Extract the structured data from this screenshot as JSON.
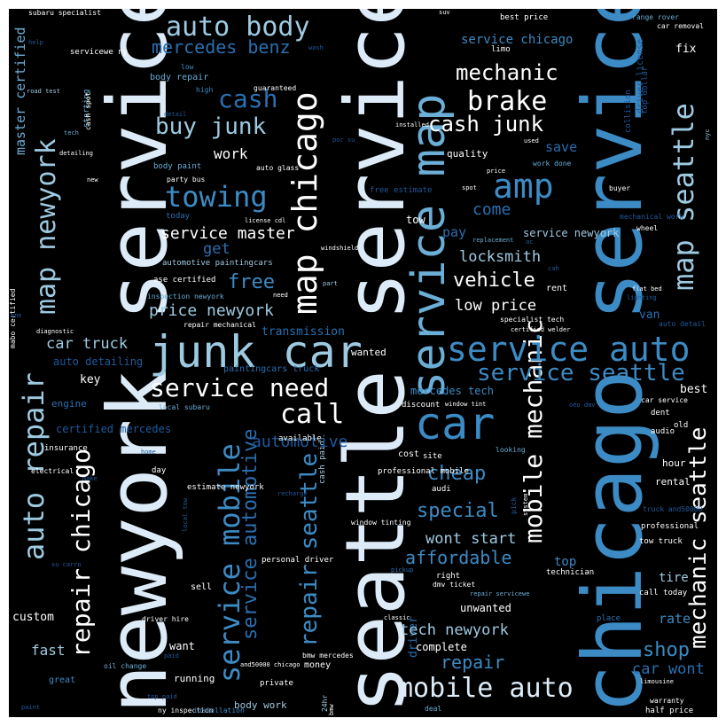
{
  "palette": {
    "background": "#000000",
    "white": "#ffffff",
    "pale": "#dcebf7",
    "light": "#9ecae1",
    "mid": "#6baed6",
    "blue": "#3c8bc4",
    "dark": "#2a6fb0",
    "navy": "#1f5a9e"
  },
  "words": [
    {
      "text": "newyork service"
    },
    {
      "text": "seattle service"
    },
    {
      "text": "chicago service"
    },
    {
      "text": "service map"
    },
    {
      "text": "junk car"
    },
    {
      "text": "map chicago"
    },
    {
      "text": "car"
    },
    {
      "text": "service auto"
    },
    {
      "text": "amp"
    },
    {
      "text": "map seattle"
    },
    {
      "text": "mobile auto"
    },
    {
      "text": "auto body"
    },
    {
      "text": "towing"
    },
    {
      "text": "brake"
    },
    {
      "text": "service need"
    },
    {
      "text": "auto repair"
    },
    {
      "text": "map newyork"
    },
    {
      "text": "service mobile"
    },
    {
      "text": "repair chicago"
    },
    {
      "text": "service seattle"
    },
    {
      "text": "mobile mechanic"
    },
    {
      "text": "cash junk"
    },
    {
      "text": "buy junk"
    },
    {
      "text": "cash"
    },
    {
      "text": "mechanic"
    },
    {
      "text": "call"
    },
    {
      "text": "repair seattle"
    },
    {
      "text": "mercedes benz"
    },
    {
      "text": "service master"
    },
    {
      "text": "vehicle"
    },
    {
      "text": "mechanic seattle"
    },
    {
      "text": "automotive"
    },
    {
      "text": "service automotive"
    },
    {
      "text": "price newyork"
    },
    {
      "text": "free"
    },
    {
      "text": "cheap"
    },
    {
      "text": "special"
    },
    {
      "text": "affordable"
    },
    {
      "text": "shop"
    },
    {
      "text": "repair"
    },
    {
      "text": "tech newyork"
    },
    {
      "text": "wont start"
    },
    {
      "text": "car truck"
    },
    {
      "text": "locksmith"
    },
    {
      "text": "low price"
    },
    {
      "text": "car wont"
    },
    {
      "text": "come"
    },
    {
      "text": "work"
    },
    {
      "text": "get"
    },
    {
      "text": "save"
    },
    {
      "text": "fast"
    },
    {
      "text": "pay"
    },
    {
      "text": "service chicago"
    },
    {
      "text": "master certified"
    },
    {
      "text": "certified mercedes"
    },
    {
      "text": "auto detailing"
    },
    {
      "text": "transmission"
    },
    {
      "text": "service newyork"
    },
    {
      "text": "mercedes tech"
    },
    {
      "text": "tire"
    },
    {
      "text": "top"
    },
    {
      "text": "rate"
    },
    {
      "text": "van"
    },
    {
      "text": "key"
    },
    {
      "text": "best"
    },
    {
      "text": "custom"
    },
    {
      "text": "engine"
    },
    {
      "text": "want"
    },
    {
      "text": "unwanted"
    },
    {
      "text": "complete"
    },
    {
      "text": "quality"
    },
    {
      "text": "tow"
    },
    {
      "text": "fix"
    },
    {
      "text": "wanted"
    },
    {
      "text": "hour"
    },
    {
      "text": "sell"
    },
    {
      "text": "rental"
    },
    {
      "text": "body repair"
    },
    {
      "text": "body work"
    },
    {
      "text": "running"
    },
    {
      "text": "money"
    },
    {
      "text": "insurance"
    },
    {
      "text": "great"
    },
    {
      "text": "driver"
    },
    {
      "text": "automotive paintingcars"
    },
    {
      "text": "paintingcars truck"
    },
    {
      "text": "subaru specialist"
    },
    {
      "text": "limo"
    },
    {
      "text": "best price"
    },
    {
      "text": "range rover"
    },
    {
      "text": "car removal"
    },
    {
      "text": "top dollar"
    },
    {
      "text": "driver license"
    },
    {
      "text": "body paint"
    },
    {
      "text": "party bus"
    },
    {
      "text": "auto glass"
    },
    {
      "text": "work done"
    },
    {
      "text": "collision"
    },
    {
      "text": "buyer"
    },
    {
      "text": "mechanical work"
    },
    {
      "text": "wheel"
    },
    {
      "text": "today"
    },
    {
      "text": "license cdl"
    },
    {
      "text": "windshield"
    },
    {
      "text": "replacement"
    },
    {
      "text": "ase certified"
    },
    {
      "text": "inspection newyork"
    },
    {
      "text": "repair mechanical"
    },
    {
      "text": "rent"
    },
    {
      "text": "flat bed"
    },
    {
      "text": "lighting"
    },
    {
      "text": "specialist tech"
    },
    {
      "text": "certified welder"
    },
    {
      "text": "auto detail"
    },
    {
      "text": "mabo certified"
    },
    {
      "text": "diagnostic"
    },
    {
      "text": "one"
    },
    {
      "text": "local subaru"
    },
    {
      "text": "discount"
    },
    {
      "text": "window tint"
    },
    {
      "text": "car service"
    },
    {
      "text": "dent"
    },
    {
      "text": "old"
    },
    {
      "text": "audio"
    },
    {
      "text": "available"
    },
    {
      "text": "cash paid"
    },
    {
      "text": "site"
    },
    {
      "text": "cost"
    },
    {
      "text": "looking"
    },
    {
      "text": "system"
    },
    {
      "text": "electrical"
    },
    {
      "text": "day"
    },
    {
      "text": "professional mobile"
    },
    {
      "text": "audi"
    },
    {
      "text": "estimate newyork"
    },
    {
      "text": "window tinting"
    },
    {
      "text": "professional"
    },
    {
      "text": "tow truck"
    },
    {
      "text": "truck and50000"
    },
    {
      "text": "personal driver"
    },
    {
      "text": "right"
    },
    {
      "text": "technician"
    },
    {
      "text": "call today"
    },
    {
      "text": "repair servicewe"
    },
    {
      "text": "driver hire"
    },
    {
      "text": "place"
    },
    {
      "text": "classic"
    },
    {
      "text": "bmw mercedes"
    },
    {
      "text": "oil change"
    },
    {
      "text": "and50000 chicago"
    },
    {
      "text": "private"
    },
    {
      "text": "24hr"
    },
    {
      "text": "limousine"
    },
    {
      "text": "warranty"
    },
    {
      "text": "half price"
    },
    {
      "text": "ny inspection"
    },
    {
      "text": "installation"
    },
    {
      "text": "deal"
    },
    {
      "text": "paint"
    },
    {
      "text": "bmw"
    },
    {
      "text": "low"
    },
    {
      "text": "high"
    },
    {
      "text": "guaranteed"
    },
    {
      "text": "tech"
    },
    {
      "text": "detailing"
    },
    {
      "text": "new"
    },
    {
      "text": "cash spot"
    },
    {
      "text": "servicewe ny"
    },
    {
      "text": "starting"
    },
    {
      "text": "road test"
    },
    {
      "text": "help"
    },
    {
      "text": "detail"
    },
    {
      "text": "installed"
    },
    {
      "text": "used"
    },
    {
      "text": "price"
    },
    {
      "text": "spot"
    },
    {
      "text": "free estimate"
    },
    {
      "text": "local tow"
    },
    {
      "text": "part"
    },
    {
      "text": "need"
    },
    {
      "text": "home"
    },
    {
      "text": "nyc"
    },
    {
      "text": "make"
    },
    {
      "text": "recharge"
    },
    {
      "text": "su carro"
    },
    {
      "text": "pickup"
    },
    {
      "text": "dmv ticket"
    },
    {
      "text": "oeo dmv"
    },
    {
      "text": "ac"
    },
    {
      "text": "cah"
    },
    {
      "text": "suv"
    },
    {
      "text": "pick"
    },
    {
      "text": "por su"
    },
    {
      "text": "wash"
    },
    {
      "text": "paid"
    },
    {
      "text": "top paid"
    }
  ]
}
